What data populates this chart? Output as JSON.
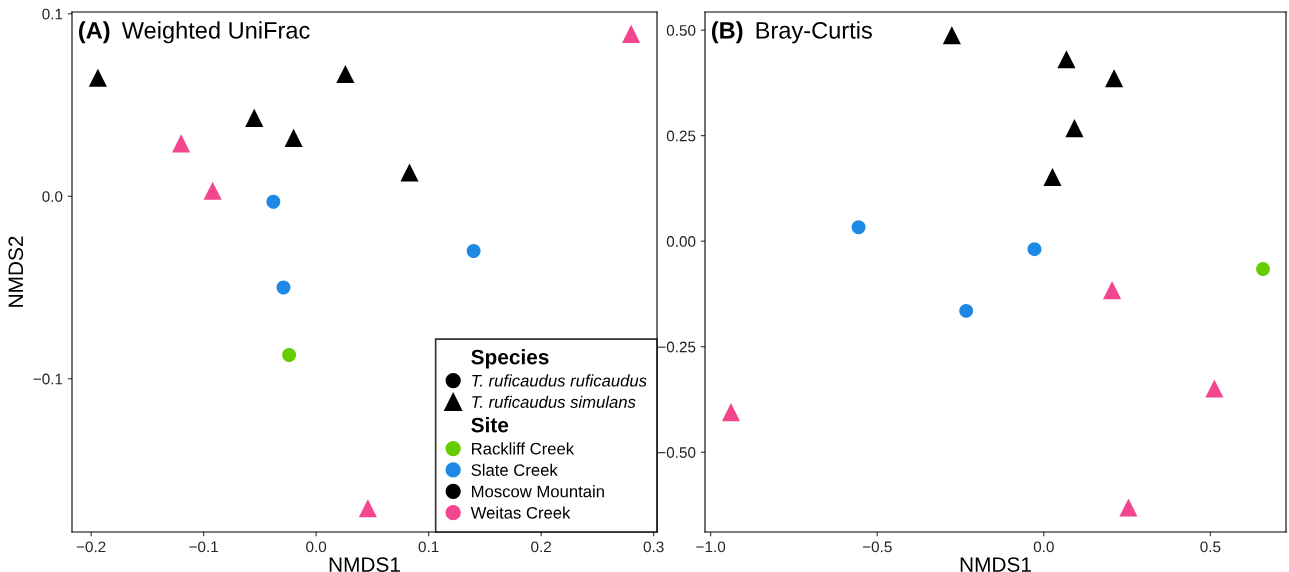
{
  "chart_data": [
    {
      "type": "scatter",
      "title": "(A)",
      "subtitle": "Weighted UniFrac",
      "xlabel": "NMDS1",
      "ylabel": "NMDS2",
      "legend": "bottom right",
      "legend_title": "Site",
      "grid": false,
      "annotations": [
        "Species",
        "T. ruficaudus ruficaudus",
        "T. ruficaudus simulans"
      ],
      "xlim": [
        -0.217,
        0.303
      ],
      "ylim": [
        -0.184,
        0.101
      ],
      "xticks": [
        {
          "value": -0.2,
          "label": "−0.2"
        },
        {
          "value": -0.1,
          "label": "−0.1"
        },
        {
          "value": 0,
          "label": "0.0"
        },
        0.1,
        0.2,
        0.3
      ],
      "yticks": [
        {
          "value": -0.1,
          "label": "−0.1"
        },
        {
          "value": 0,
          "label": "0.0"
        },
        0.1
      ],
      "series": [
        {
          "name": "Rackliff Creek",
          "color": "#66cc00",
          "marker": "circle",
          "x": [
            -0.024
          ],
          "values": [
            -0.087
          ]
        },
        {
          "name": "Slate Creek",
          "color": "#1e88e5",
          "marker": "circle",
          "x": [
            -0.038,
            -0.029,
            0.14
          ],
          "values": [
            -0.003,
            -0.05,
            -0.03
          ]
        },
        {
          "name": "Moscow Mountain",
          "color": "#000000",
          "marker": "triangle",
          "x": [
            -0.194,
            -0.055,
            -0.02,
            0.026,
            0.083
          ],
          "values": [
            0.065,
            0.043,
            0.032,
            0.067,
            0.013
          ]
        },
        {
          "name": "Weitas Creek",
          "color": "#f4468f",
          "marker": "triangle",
          "x": [
            -0.12,
            -0.092,
            0.046,
            0.28
          ],
          "values": [
            0.029,
            0.003,
            -0.171,
            0.089
          ]
        }
      ]
    },
    {
      "type": "scatter",
      "title": "(B)",
      "subtitle": "Bray-Curtis",
      "xlabel": "NMDS1",
      "legend": false,
      "grid": false,
      "xlim": [
        -1.017,
        0.727
      ],
      "ylim": [
        -0.689,
        0.543
      ],
      "xticks": [
        {
          "value": -1.0,
          "label": "−1.0"
        },
        {
          "value": -0.5,
          "label": "−0.5"
        },
        {
          "value": 0,
          "label": "0.0"
        },
        0.5
      ],
      "yticks": [
        {
          "value": -0.5,
          "label": "−0.50"
        },
        {
          "value": -0.25,
          "label": "−0.25"
        },
        {
          "value": 0,
          "label": "0.00"
        },
        {
          "value": 0.25,
          "label": "0.25"
        },
        {
          "value": 0.5,
          "label": "0.50"
        }
      ],
      "series": [
        {
          "color": "#66cc00",
          "marker": "circle",
          "x": [
            0.658
          ],
          "values": [
            -0.066
          ]
        },
        {
          "color": "#1e88e5",
          "marker": "circle",
          "x": [
            -0.556,
            -0.028,
            -0.233
          ],
          "values": [
            0.033,
            -0.019,
            -0.165
          ]
        },
        {
          "color": "#000000",
          "marker": "triangle",
          "x": [
            -0.276,
            0.068,
            0.211,
            0.092,
            0.026
          ],
          "values": [
            0.488,
            0.431,
            0.386,
            0.268,
            0.152
          ]
        },
        {
          "color": "#f4468f",
          "marker": "triangle",
          "x": [
            0.205,
            0.512,
            0.254,
            -0.939
          ],
          "values": [
            -0.116,
            -0.349,
            -0.631,
            -0.405
          ]
        }
      ]
    }
  ]
}
